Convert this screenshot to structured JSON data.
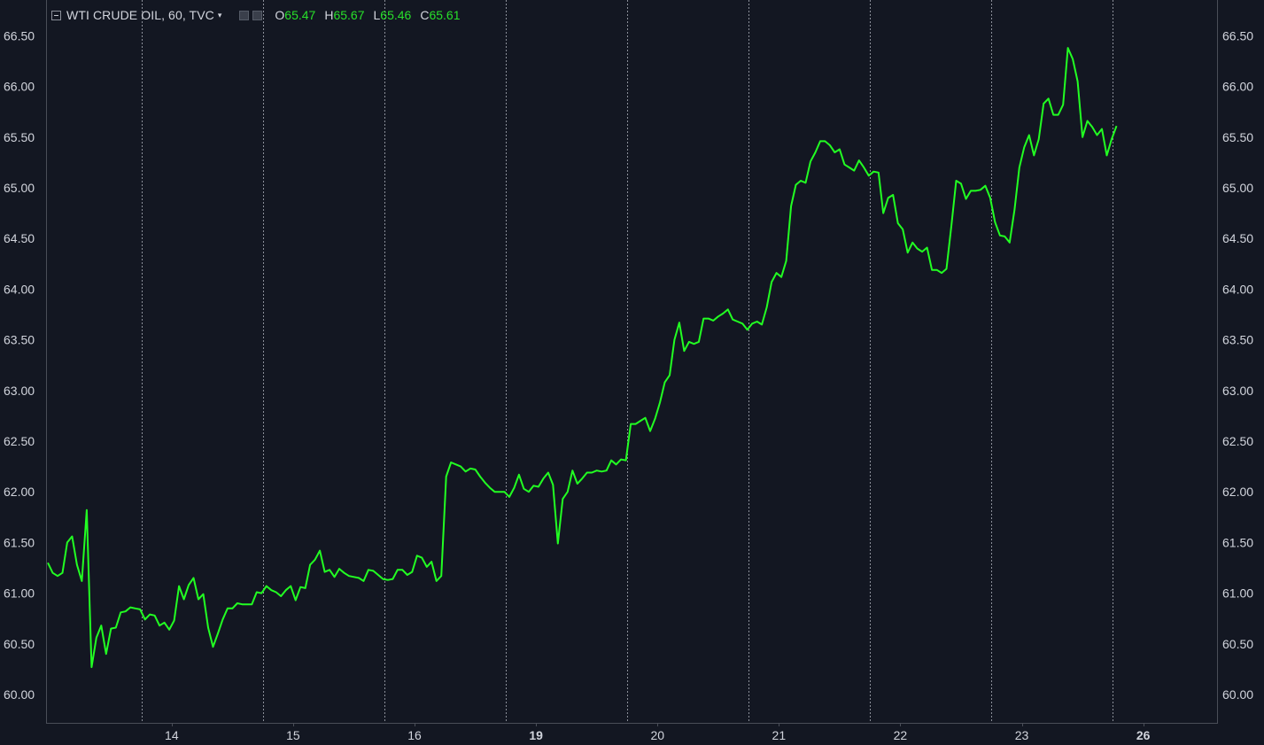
{
  "header": {
    "symbol": "WTI CRUDE OIL, 60, TVC",
    "open_label": "O",
    "open": "65.47",
    "high_label": "H",
    "high": "65.67",
    "low_label": "L",
    "low": "65.46",
    "close_label": "C",
    "close": "65.61"
  },
  "colors": {
    "background": "#131722",
    "line": "#22ff22",
    "text": "#d1d4dc",
    "axis": "#4a4e58"
  },
  "chart_data": {
    "type": "line",
    "title": "",
    "xlabel": "",
    "ylabel": "",
    "ylim": [
      59.75,
      66.75
    ],
    "y_ticks": [
      "60.00",
      "60.50",
      "61.00",
      "61.50",
      "62.00",
      "62.50",
      "63.00",
      "63.50",
      "64.00",
      "64.50",
      "65.00",
      "65.50",
      "66.00",
      "66.50"
    ],
    "x_ticks": [
      {
        "label": "14",
        "x": 13.0,
        "bold": false
      },
      {
        "label": "15",
        "x": 14.0,
        "bold": false
      },
      {
        "label": "16",
        "x": 15.0,
        "bold": false
      },
      {
        "label": "19",
        "x": 16.0,
        "bold": true
      },
      {
        "label": "20",
        "x": 17.0,
        "bold": false
      },
      {
        "label": "21",
        "x": 18.0,
        "bold": false
      },
      {
        "label": "22",
        "x": 19.0,
        "bold": false
      },
      {
        "label": "23",
        "x": 20.0,
        "bold": false
      },
      {
        "label": "26",
        "x": 21.0,
        "bold": true
      }
    ],
    "session_breaks": [
      12.75,
      13.75,
      14.75,
      15.75,
      16.75,
      17.75,
      18.75,
      19.75,
      20.75
    ],
    "xlim": [
      11.98,
      21.64
    ],
    "grid": "vertical session separators",
    "series": [
      {
        "values": [
          [
            11.98,
            61.3
          ],
          [
            12.02,
            61.2
          ],
          [
            12.06,
            61.17
          ],
          [
            12.1,
            61.2
          ],
          [
            12.14,
            61.5
          ],
          [
            12.18,
            61.56
          ],
          [
            12.22,
            61.28
          ],
          [
            12.26,
            61.12
          ],
          [
            12.3,
            61.82
          ],
          [
            12.34,
            60.27
          ],
          [
            12.38,
            60.56
          ],
          [
            12.42,
            60.68
          ],
          [
            12.46,
            60.4
          ],
          [
            12.5,
            60.65
          ],
          [
            12.54,
            60.66
          ],
          [
            12.58,
            60.81
          ],
          [
            12.62,
            60.82
          ],
          [
            12.66,
            60.86
          ],
          [
            12.7,
            60.85
          ],
          [
            12.74,
            60.84
          ],
          [
            12.78,
            60.74
          ],
          [
            12.82,
            60.79
          ],
          [
            12.86,
            60.78
          ],
          [
            12.9,
            60.68
          ],
          [
            12.94,
            60.71
          ],
          [
            12.98,
            60.64
          ],
          [
            13.02,
            60.73
          ],
          [
            13.06,
            61.07
          ],
          [
            13.1,
            60.94
          ],
          [
            13.14,
            61.08
          ],
          [
            13.18,
            61.15
          ],
          [
            13.22,
            60.94
          ],
          [
            13.26,
            60.99
          ],
          [
            13.3,
            60.66
          ],
          [
            13.34,
            60.47
          ],
          [
            13.38,
            60.6
          ],
          [
            13.42,
            60.74
          ],
          [
            13.46,
            60.85
          ],
          [
            13.5,
            60.85
          ],
          [
            13.54,
            60.9
          ],
          [
            13.58,
            60.89
          ],
          [
            13.62,
            60.89
          ],
          [
            13.66,
            60.89
          ],
          [
            13.7,
            61.01
          ],
          [
            13.74,
            61.0
          ],
          [
            13.78,
            61.07
          ],
          [
            13.82,
            61.03
          ],
          [
            13.86,
            61.01
          ],
          [
            13.9,
            60.97
          ],
          [
            13.94,
            61.03
          ],
          [
            13.98,
            61.07
          ],
          [
            14.02,
            60.93
          ],
          [
            14.06,
            61.06
          ],
          [
            14.1,
            61.05
          ],
          [
            14.14,
            61.28
          ],
          [
            14.18,
            61.33
          ],
          [
            14.22,
            61.42
          ],
          [
            14.26,
            61.21
          ],
          [
            14.3,
            61.23
          ],
          [
            14.34,
            61.16
          ],
          [
            14.38,
            61.24
          ],
          [
            14.42,
            61.2
          ],
          [
            14.46,
            61.17
          ],
          [
            14.5,
            61.16
          ],
          [
            14.54,
            61.15
          ],
          [
            14.58,
            61.12
          ],
          [
            14.62,
            61.23
          ],
          [
            14.66,
            61.22
          ],
          [
            14.7,
            61.18
          ],
          [
            14.74,
            61.14
          ],
          [
            14.78,
            61.13
          ],
          [
            14.82,
            61.14
          ],
          [
            14.86,
            61.23
          ],
          [
            14.9,
            61.23
          ],
          [
            14.94,
            61.18
          ],
          [
            14.98,
            61.21
          ],
          [
            15.02,
            61.37
          ],
          [
            15.06,
            61.35
          ],
          [
            15.1,
            61.26
          ],
          [
            15.14,
            61.31
          ],
          [
            15.18,
            61.12
          ],
          [
            15.22,
            61.17
          ],
          [
            15.26,
            62.15
          ],
          [
            15.3,
            62.29
          ],
          [
            15.34,
            62.27
          ],
          [
            15.38,
            62.25
          ],
          [
            15.42,
            62.2
          ],
          [
            15.46,
            62.23
          ],
          [
            15.5,
            62.22
          ],
          [
            15.54,
            62.15
          ],
          [
            15.58,
            62.09
          ],
          [
            15.62,
            62.04
          ],
          [
            15.66,
            62.0
          ],
          [
            15.7,
            62.0
          ],
          [
            15.74,
            62.0
          ],
          [
            15.78,
            61.95
          ],
          [
            15.82,
            62.04
          ],
          [
            15.86,
            62.17
          ],
          [
            15.9,
            62.03
          ],
          [
            15.94,
            62.0
          ],
          [
            15.98,
            62.06
          ],
          [
            16.02,
            62.05
          ],
          [
            16.06,
            62.13
          ],
          [
            16.1,
            62.19
          ],
          [
            16.14,
            62.07
          ],
          [
            16.18,
            61.49
          ],
          [
            16.22,
            61.93
          ],
          [
            16.26,
            62.0
          ],
          [
            16.3,
            62.21
          ],
          [
            16.34,
            62.08
          ],
          [
            16.38,
            62.13
          ],
          [
            16.42,
            62.19
          ],
          [
            16.46,
            62.19
          ],
          [
            16.5,
            62.21
          ],
          [
            16.54,
            62.2
          ],
          [
            16.58,
            62.21
          ],
          [
            16.62,
            62.31
          ],
          [
            16.66,
            62.27
          ],
          [
            16.7,
            62.32
          ],
          [
            16.74,
            62.31
          ],
          [
            16.78,
            62.67
          ],
          [
            16.82,
            62.67
          ],
          [
            16.86,
            62.7
          ],
          [
            16.9,
            62.73
          ],
          [
            16.94,
            62.6
          ],
          [
            16.98,
            62.72
          ],
          [
            17.02,
            62.88
          ],
          [
            17.06,
            63.08
          ],
          [
            17.1,
            63.15
          ],
          [
            17.14,
            63.5
          ],
          [
            17.18,
            63.67
          ],
          [
            17.22,
            63.39
          ],
          [
            17.26,
            63.48
          ],
          [
            17.3,
            63.46
          ],
          [
            17.34,
            63.48
          ],
          [
            17.38,
            63.71
          ],
          [
            17.42,
            63.71
          ],
          [
            17.46,
            63.69
          ],
          [
            17.5,
            63.73
          ],
          [
            17.54,
            63.76
          ],
          [
            17.58,
            63.8
          ],
          [
            17.62,
            63.7
          ],
          [
            17.66,
            63.68
          ],
          [
            17.7,
            63.66
          ],
          [
            17.74,
            63.6
          ],
          [
            17.78,
            63.66
          ],
          [
            17.82,
            63.68
          ],
          [
            17.86,
            63.65
          ],
          [
            17.9,
            63.82
          ],
          [
            17.94,
            64.07
          ],
          [
            17.98,
            64.16
          ],
          [
            18.02,
            64.12
          ],
          [
            18.06,
            64.28
          ],
          [
            18.1,
            64.82
          ],
          [
            18.14,
            65.03
          ],
          [
            18.18,
            65.07
          ],
          [
            18.22,
            65.05
          ],
          [
            18.26,
            65.26
          ],
          [
            18.3,
            65.35
          ],
          [
            18.34,
            65.46
          ],
          [
            18.38,
            65.46
          ],
          [
            18.42,
            65.42
          ],
          [
            18.46,
            65.35
          ],
          [
            18.5,
            65.38
          ],
          [
            18.54,
            65.23
          ],
          [
            18.58,
            65.2
          ],
          [
            18.62,
            65.17
          ],
          [
            18.66,
            65.27
          ],
          [
            18.7,
            65.2
          ],
          [
            18.74,
            65.12
          ],
          [
            18.78,
            65.16
          ],
          [
            18.82,
            65.15
          ],
          [
            18.86,
            64.75
          ],
          [
            18.9,
            64.9
          ],
          [
            18.94,
            64.93
          ],
          [
            18.98,
            64.65
          ],
          [
            19.02,
            64.59
          ],
          [
            19.06,
            64.36
          ],
          [
            19.1,
            64.46
          ],
          [
            19.14,
            64.4
          ],
          [
            19.18,
            64.37
          ],
          [
            19.22,
            64.41
          ],
          [
            19.26,
            64.19
          ],
          [
            19.3,
            64.19
          ],
          [
            19.34,
            64.16
          ],
          [
            19.38,
            64.2
          ],
          [
            19.42,
            64.62
          ],
          [
            19.46,
            65.07
          ],
          [
            19.5,
            65.04
          ],
          [
            19.54,
            64.89
          ],
          [
            19.58,
            64.97
          ],
          [
            19.62,
            64.97
          ],
          [
            19.66,
            64.98
          ],
          [
            19.7,
            65.02
          ],
          [
            19.74,
            64.9
          ],
          [
            19.78,
            64.66
          ],
          [
            19.82,
            64.53
          ],
          [
            19.86,
            64.52
          ],
          [
            19.9,
            64.46
          ],
          [
            19.94,
            64.78
          ],
          [
            19.98,
            65.2
          ],
          [
            20.02,
            65.4
          ],
          [
            20.06,
            65.52
          ],
          [
            20.1,
            65.32
          ],
          [
            20.14,
            65.48
          ],
          [
            20.18,
            65.83
          ],
          [
            20.22,
            65.88
          ],
          [
            20.26,
            65.72
          ],
          [
            20.3,
            65.72
          ],
          [
            20.34,
            65.82
          ],
          [
            20.38,
            66.38
          ],
          [
            20.42,
            66.27
          ],
          [
            20.46,
            66.05
          ],
          [
            20.5,
            65.5
          ],
          [
            20.54,
            65.66
          ],
          [
            20.58,
            65.6
          ],
          [
            20.62,
            65.52
          ],
          [
            20.66,
            65.58
          ],
          [
            20.7,
            65.32
          ],
          [
            20.74,
            65.48
          ],
          [
            20.78,
            65.61
          ]
        ]
      }
    ]
  }
}
